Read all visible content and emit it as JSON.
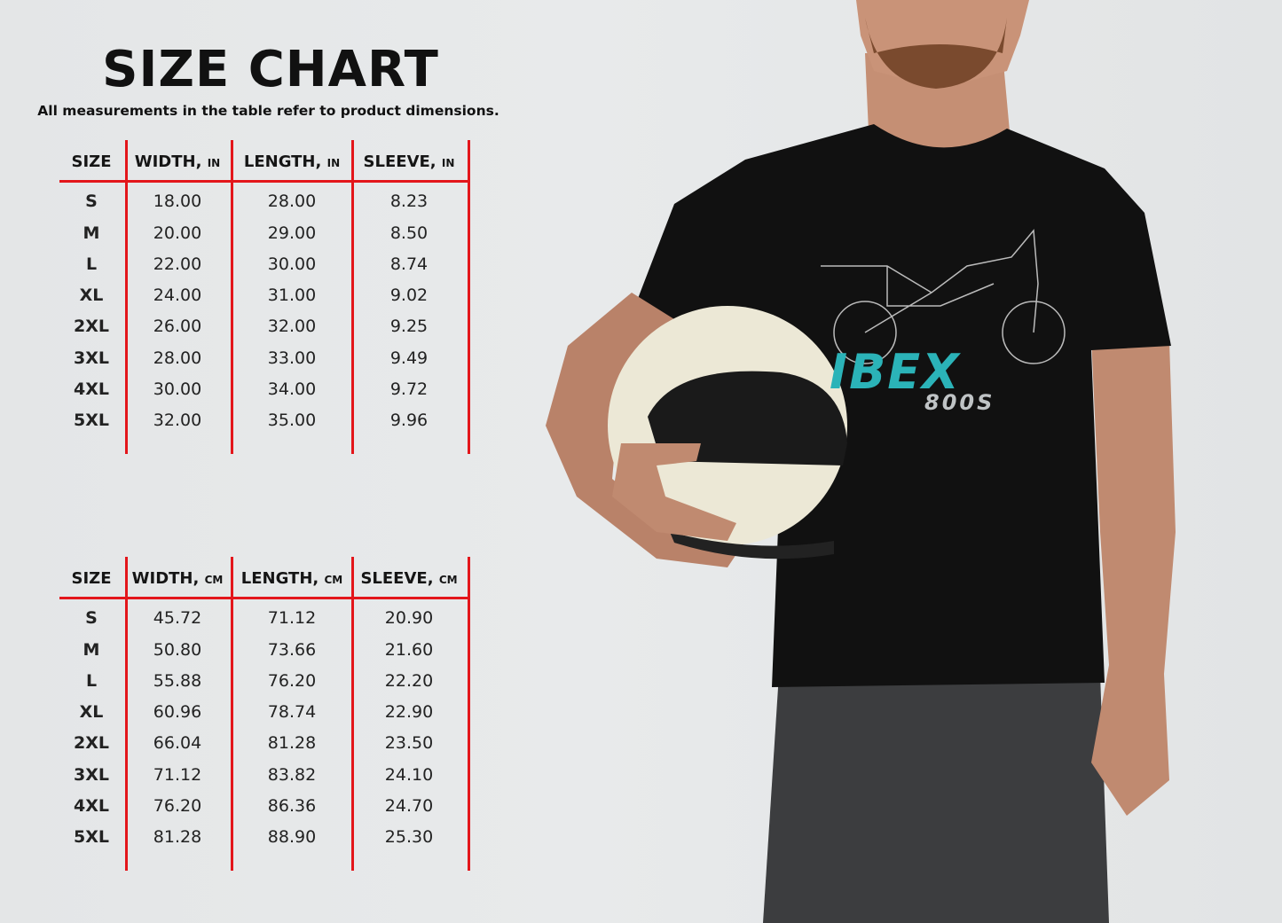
{
  "title": "SIZE CHART",
  "subtitle": "All measurements in the table refer to product dimensions.",
  "tables": [
    {
      "headers": [
        {
          "label": "SIZE",
          "unit": ""
        },
        {
          "label": "WIDTH,",
          "unit": "IN"
        },
        {
          "label": "LENGTH,",
          "unit": "IN"
        },
        {
          "label": "SLEEVE,",
          "unit": "IN"
        }
      ],
      "rows": [
        [
          "S",
          "18.00",
          "28.00",
          "8.23"
        ],
        [
          "M",
          "20.00",
          "29.00",
          "8.50"
        ],
        [
          "L",
          "22.00",
          "30.00",
          "8.74"
        ],
        [
          "XL",
          "24.00",
          "31.00",
          "9.02"
        ],
        [
          "2XL",
          "26.00",
          "32.00",
          "9.25"
        ],
        [
          "3XL",
          "28.00",
          "33.00",
          "9.49"
        ],
        [
          "4XL",
          "30.00",
          "34.00",
          "9.72"
        ],
        [
          "5XL",
          "32.00",
          "35.00",
          "9.96"
        ]
      ]
    },
    {
      "headers": [
        {
          "label": "SIZE",
          "unit": ""
        },
        {
          "label": "WIDTH,",
          "unit": "CM"
        },
        {
          "label": "LENGTH,",
          "unit": "CM"
        },
        {
          "label": "SLEEVE,",
          "unit": "CM"
        }
      ],
      "rows": [
        [
          "S",
          "45.72",
          "71.12",
          "20.90"
        ],
        [
          "M",
          "50.80",
          "73.66",
          "21.60"
        ],
        [
          "L",
          "55.88",
          "76.20",
          "22.20"
        ],
        [
          "XL",
          "60.96",
          "78.74",
          "22.90"
        ],
        [
          "2XL",
          "66.04",
          "81.28",
          "23.50"
        ],
        [
          "3XL",
          "71.12",
          "83.82",
          "24.10"
        ],
        [
          "4XL",
          "76.20",
          "86.36",
          "24.70"
        ],
        [
          "5XL",
          "81.28",
          "88.90",
          "25.30"
        ]
      ]
    }
  ],
  "shirt_graphic": {
    "brand": "IBEX",
    "model": "800S"
  },
  "colors": {
    "rule_red": "#e3161b",
    "brand_teal": "#2bb3b8",
    "shirt_black": "#111111"
  }
}
